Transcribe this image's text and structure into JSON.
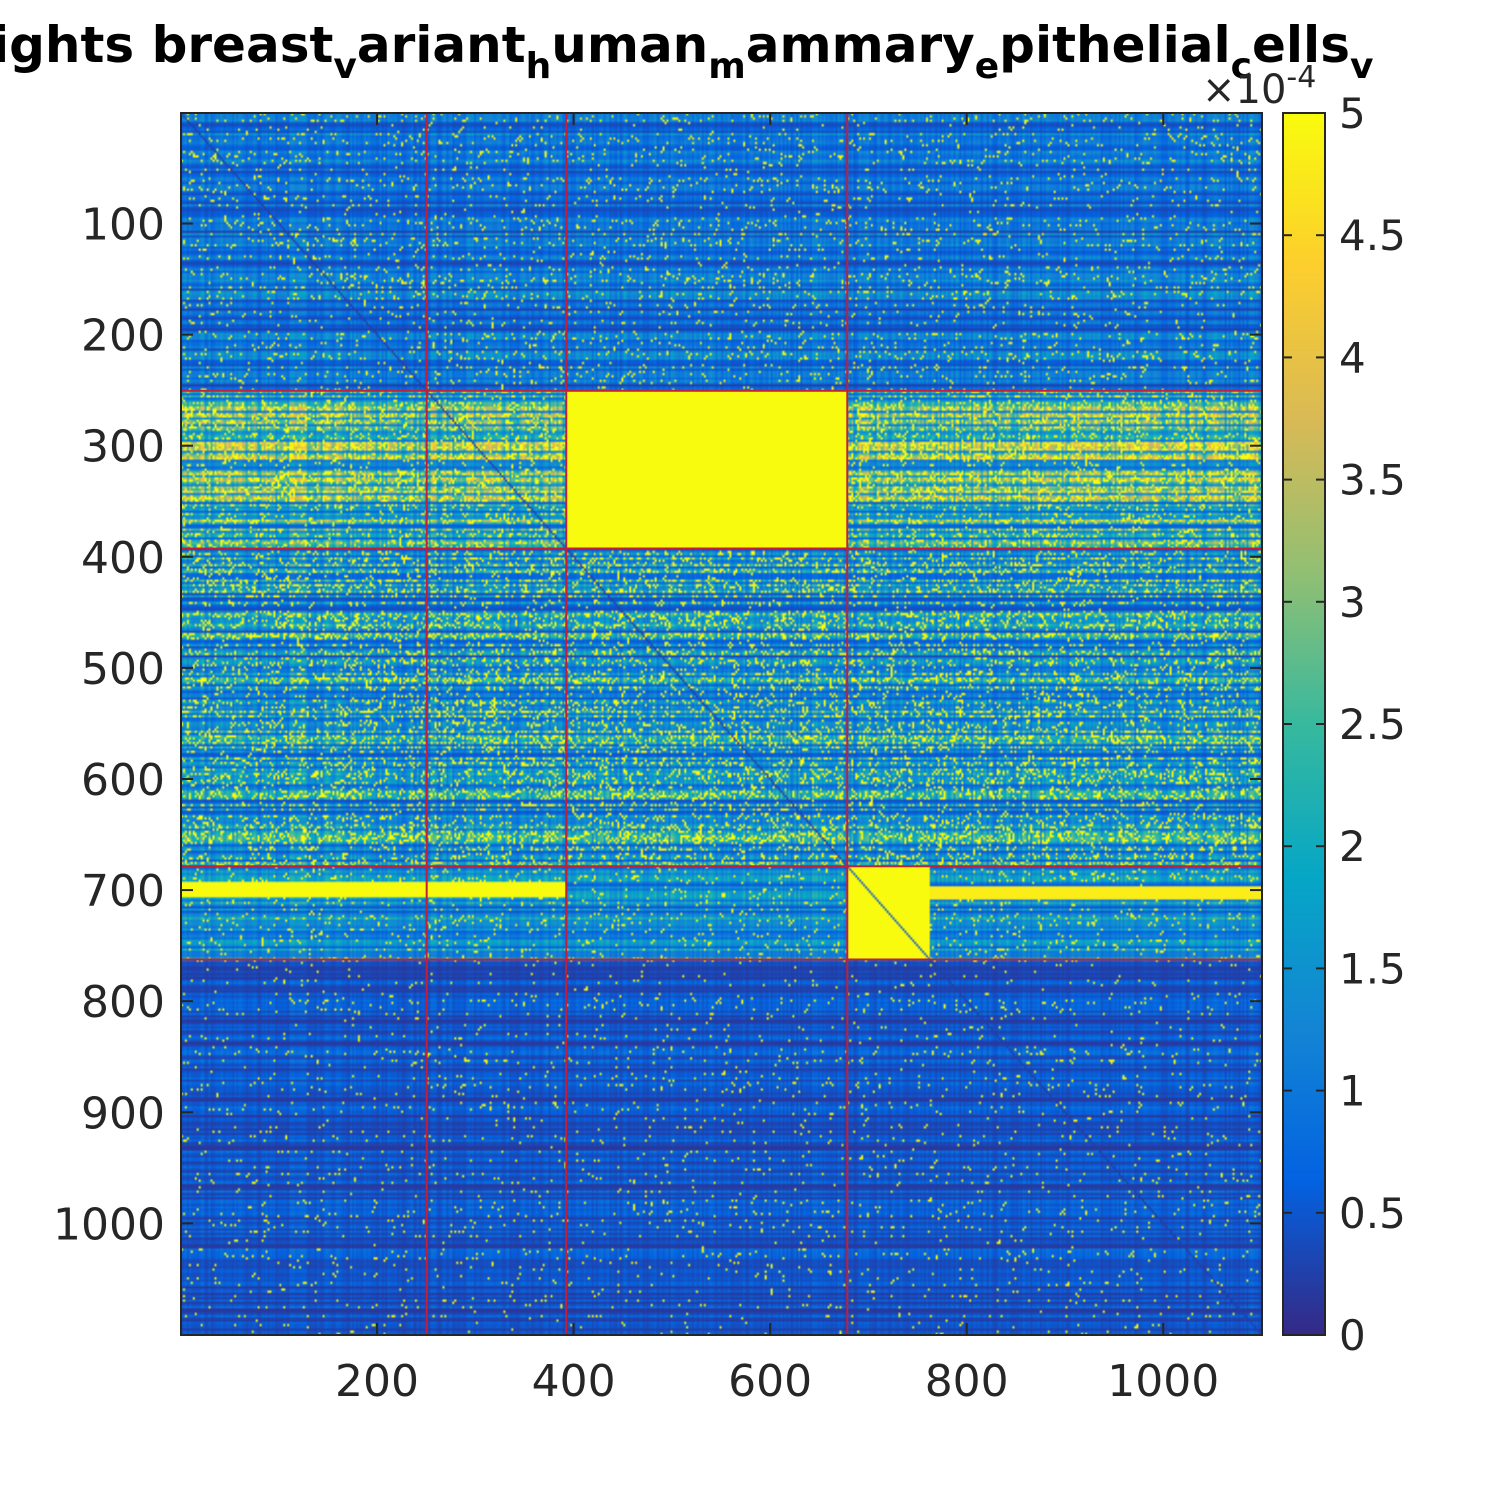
{
  "chart_data": {
    "type": "heatmap",
    "title": {
      "segments": [
        {
          "text": "ights breast",
          "sub": false
        },
        {
          "text": "v",
          "sub": true
        },
        {
          "text": "ariant",
          "sub": false
        },
        {
          "text": "h",
          "sub": true
        },
        {
          "text": "uman",
          "sub": false
        },
        {
          "text": "m",
          "sub": true
        },
        {
          "text": "ammary",
          "sub": false
        },
        {
          "text": "e",
          "sub": true
        },
        {
          "text": "pithelial",
          "sub": false
        },
        {
          "text": "c",
          "sub": true
        },
        {
          "text": "ells",
          "sub": false
        },
        {
          "text": "v",
          "sub": true
        }
      ]
    },
    "x_range": [
      1,
      1100
    ],
    "y_range": [
      1,
      1100
    ],
    "x_ticks": [
      200,
      400,
      600,
      800,
      1000
    ],
    "y_ticks": [
      100,
      200,
      300,
      400,
      500,
      600,
      700,
      800,
      900,
      1000
    ],
    "colorbar": {
      "range": [
        0,
        5
      ],
      "ticks": [
        0,
        0.5,
        1,
        1.5,
        2,
        2.5,
        3,
        3.5,
        4,
        4.5,
        5
      ],
      "exponent_label": "×10",
      "exponent_power": "-4",
      "colormap": "parula",
      "stops": [
        "#352a87",
        "#0363e1",
        "#1485d4",
        "#06a7c6",
        "#38b99e",
        "#92bf73",
        "#d9ba56",
        "#fcce2e",
        "#f9fb0e"
      ]
    },
    "block_boundaries": [
      250,
      392,
      678,
      762
    ],
    "boundary_color": "#c0203a",
    "row_bands": [
      {
        "range": [
          1,
          250
        ],
        "base": 0.9,
        "var": 1.1,
        "spark": 0.1
      },
      {
        "range": [
          251,
          392
        ],
        "base": 2.2,
        "var": 2.6,
        "spark": 0.35
      },
      {
        "range": [
          393,
          678
        ],
        "base": 1.4,
        "var": 1.8,
        "spark": 0.3
      },
      {
        "range": [
          679,
          762
        ],
        "base": 1.3,
        "var": 1.2,
        "spark": 0.1
      },
      {
        "range": [
          763,
          1100
        ],
        "base": 0.5,
        "var": 0.6,
        "spark": 0.05
      }
    ],
    "saturated_blocks": [
      {
        "rows": [
          251,
          392
        ],
        "cols": [
          393,
          678
        ],
        "value": 5
      },
      {
        "rows": [
          679,
          762
        ],
        "cols": [
          679,
          762
        ],
        "value": 5
      }
    ],
    "strong_rows": [
      {
        "row": 699,
        "cols": [
          1,
          392
        ],
        "value": 5
      },
      {
        "row": 702,
        "cols": [
          763,
          1100
        ],
        "value": 4.8
      }
    ]
  }
}
